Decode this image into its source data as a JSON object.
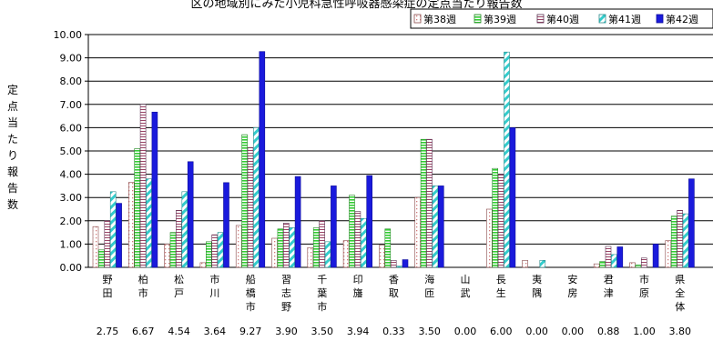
{
  "chart_data": {
    "type": "bar",
    "title": "区の地域別にみた小児科急性呼吸器感染症の定点当たり報告数",
    "ylabel": "定点当たり報告数",
    "ylim": [
      0,
      10
    ],
    "yticks": [
      "0.00",
      "1.00",
      "2.00",
      "3.00",
      "4.00",
      "5.00",
      "6.00",
      "7.00",
      "8.00",
      "9.00",
      "10.00"
    ],
    "grid": true,
    "legend_position": "top-right",
    "categories": [
      "野田",
      "柏市",
      "松戸",
      "市川",
      "船橋市",
      "習志野",
      "千葉市",
      "印旛",
      "香取",
      "海匝",
      "山武",
      "長生",
      "夷隅",
      "安房",
      "君津",
      "市原",
      "県全体"
    ],
    "series": [
      {
        "name": "第38週",
        "color": "#ffffff",
        "pattern": "dots",
        "values": [
          1.75,
          3.65,
          1.0,
          0.2,
          1.8,
          1.25,
          0.85,
          1.15,
          0.95,
          3.0,
          0.0,
          2.5,
          0.3,
          0.0,
          0.15,
          0.2,
          1.15
        ]
      },
      {
        "name": "第39週",
        "color": "#33cc33",
        "pattern": "stripes",
        "values": [
          0.75,
          5.1,
          1.5,
          1.1,
          5.7,
          1.65,
          1.7,
          3.1,
          1.65,
          5.5,
          0.0,
          4.25,
          0.0,
          0.0,
          0.25,
          0.1,
          2.2
        ]
      },
      {
        "name": "第40週",
        "color": "#ffffff",
        "pattern": "hlines",
        "values": [
          2.0,
          7.0,
          2.45,
          1.4,
          5.15,
          1.9,
          2.0,
          2.4,
          0.3,
          5.5,
          0.0,
          4.0,
          0.0,
          0.0,
          0.9,
          0.4,
          2.45
        ]
      },
      {
        "name": "第41週",
        "color": "#33cccc",
        "pattern": "diag",
        "values": [
          3.25,
          3.8,
          3.25,
          1.5,
          6.0,
          1.7,
          1.1,
          2.1,
          0.05,
          3.5,
          0.0,
          9.25,
          0.3,
          0.0,
          0.55,
          0.0,
          2.3
        ]
      },
      {
        "name": "第42週",
        "color": "#1a1adc",
        "pattern": "solid",
        "values": [
          2.75,
          6.67,
          4.54,
          3.64,
          9.27,
          3.9,
          3.5,
          3.94,
          0.33,
          3.5,
          0.0,
          6.0,
          0.0,
          0.0,
          0.88,
          1.0,
          3.8
        ]
      }
    ],
    "bottom_labels": [
      "2.75",
      "6.67",
      "4.54",
      "3.64",
      "9.27",
      "3.90",
      "3.50",
      "3.94",
      "0.33",
      "3.50",
      "0.00",
      "6.00",
      "0.00",
      "0.00",
      "0.88",
      "1.00",
      "3.80"
    ]
  }
}
